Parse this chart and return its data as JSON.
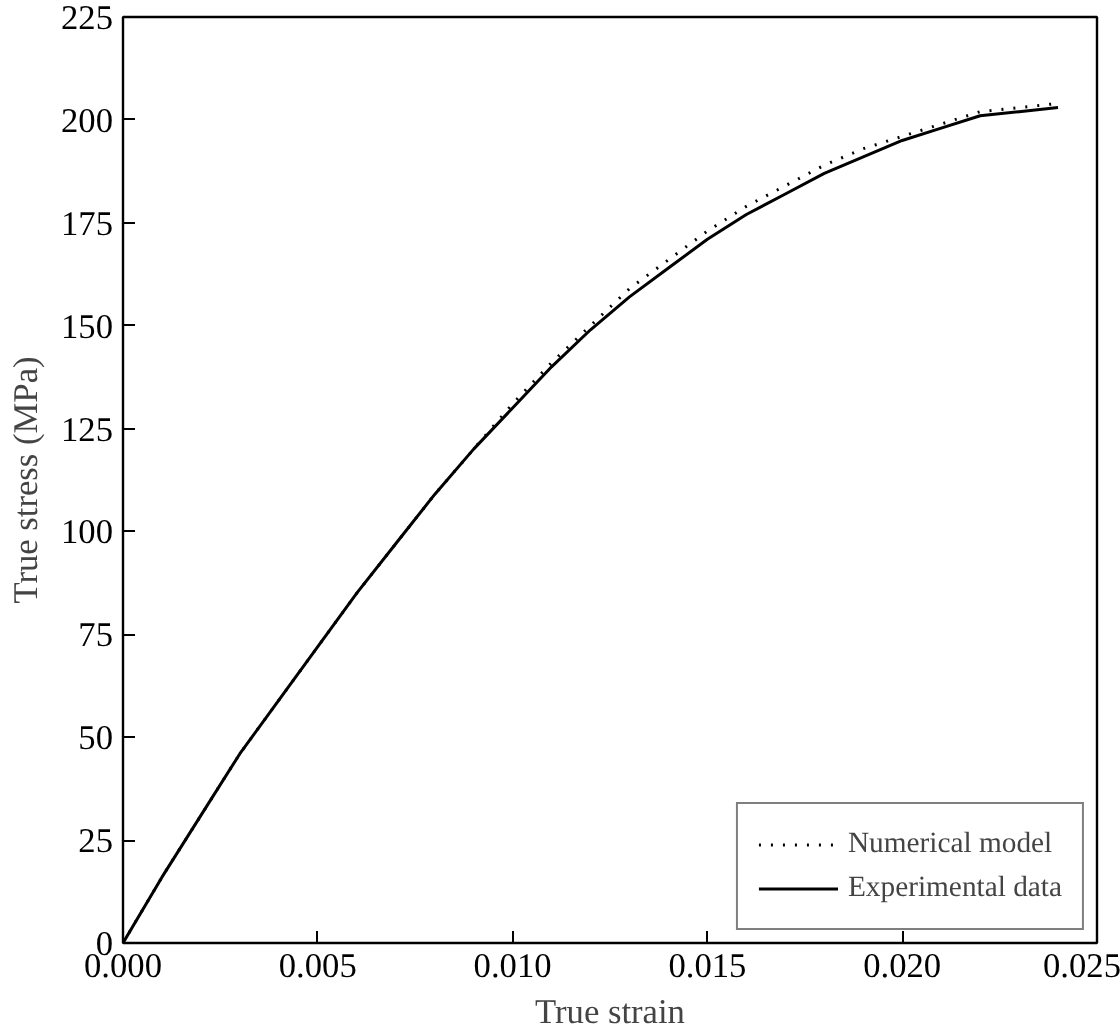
{
  "chart_data": {
    "type": "line",
    "xlabel": "True strain",
    "ylabel": "True stress (MPa)",
    "xlim": [
      0,
      0.025
    ],
    "ylim": [
      0,
      225
    ],
    "xticks": [
      {
        "value": 0,
        "label": "0.000"
      },
      0.005,
      {
        "value": 0.01,
        "label": "0.010"
      },
      0.015,
      {
        "value": 0.02,
        "label": "0.020"
      },
      0.025
    ],
    "yticks": [
      0,
      25,
      50,
      75,
      100,
      125,
      150,
      175,
      200,
      225
    ],
    "grid": false,
    "legend": "bottom right",
    "x": [
      0,
      0.001,
      0.002,
      0.003,
      0.004,
      0.005,
      0.006,
      0.007,
      0.008,
      0.009,
      0.01,
      0.011,
      0.012,
      0.013,
      0.014,
      0.015,
      0.016,
      0.017,
      0.018,
      0.019,
      0.02,
      0.021,
      0.022,
      0.023,
      0.024
    ],
    "series": [
      {
        "name": "Numerical model",
        "color": "#000000",
        "line_style": "dotted",
        "values": [
          0,
          16,
          31,
          46,
          59,
          72,
          85,
          97,
          109,
          120,
          131,
          141,
          150,
          159,
          166,
          173,
          179,
          184,
          189,
          193,
          196,
          199,
          202,
          203,
          204
        ]
      },
      {
        "name": "Experimental data",
        "color": "#000000",
        "line_style": "solid",
        "values": [
          0,
          16,
          31,
          46,
          59,
          72,
          85,
          97,
          109,
          120,
          130,
          140,
          149,
          157,
          164,
          171,
          177,
          182,
          187,
          191,
          195,
          198,
          201,
          202,
          203
        ]
      }
    ]
  }
}
